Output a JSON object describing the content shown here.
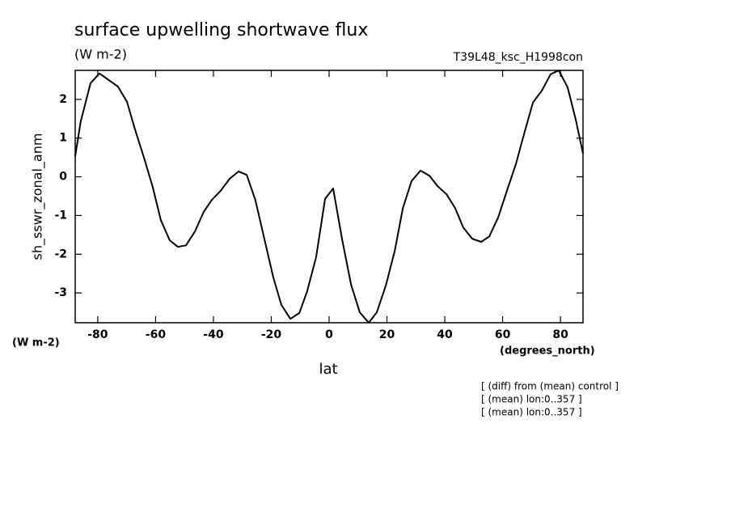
{
  "chart_data": {
    "type": "line",
    "title": "surface upwelling shortwave flux",
    "units": "(W m-2)",
    "run_name": "T39L48_ksc_H1998con",
    "y_label": "sh_sswr_zonal_anm",
    "y_units": "(W m-2)",
    "x_units": "(degrees_north)",
    "x_label": "lat",
    "notes": [
      "[ (diff) from (mean) control ]",
      "[ (mean) lon:0..357 ]",
      "[ (mean) lon:0..357 ]"
    ],
    "x": [
      -87.8,
      -85.9,
      -82.5,
      -79.4,
      -73,
      -69.9,
      -67.1,
      -64,
      -61,
      -58.2,
      -55.1,
      -52.3,
      -49.5,
      -46.4,
      -43.4,
      -40.6,
      -37.5,
      -34.4,
      -31.3,
      -28.5,
      -25.5,
      -22.4,
      -19.3,
      -16.5,
      -13.4,
      -10.3,
      -7.6,
      -4.5,
      -1.4,
      1.4,
      4.5,
      7.6,
      10.6,
      13.7,
      16.5,
      19.6,
      22.7,
      25.5,
      28.5,
      31.6,
      34.7,
      37.5,
      40.6,
      43.6,
      46.4,
      49.5,
      52.6,
      55.4,
      58.5,
      61.5,
      64.6,
      67.4,
      70.5,
      73.6,
      76.6,
      79.4,
      82.5,
      85.3,
      87.8
    ],
    "series": [
      {
        "color": "#000000",
        "values": [
          0.53,
          1.43,
          2.42,
          2.67,
          2.33,
          1.94,
          1.22,
          0.49,
          -0.26,
          -1.12,
          -1.64,
          -1.81,
          -1.77,
          -1.41,
          -0.91,
          -0.6,
          -0.36,
          -0.05,
          0.14,
          0.05,
          -0.6,
          -1.6,
          -2.6,
          -3.31,
          -3.67,
          -3.52,
          -2.96,
          -2.08,
          -0.57,
          -0.3,
          -1.62,
          -2.79,
          -3.5,
          -3.77,
          -3.5,
          -2.81,
          -1.91,
          -0.81,
          -0.11,
          0.16,
          0.03,
          -0.24,
          -0.45,
          -0.81,
          -1.31,
          -1.6,
          -1.68,
          -1.54,
          -1.04,
          -0.36,
          0.33,
          1.1,
          1.92,
          2.23,
          2.65,
          2.75,
          2.31,
          1.47,
          0.6
        ]
      }
    ],
    "xlim": [
      -87.8,
      87.8
    ],
    "xticks": [
      -80,
      -60,
      -40,
      -20,
      0,
      20,
      40,
      60,
      80
    ],
    "ylim": [
      -3.77,
      2.75
    ],
    "yticks": [
      -3,
      -2,
      -1,
      0,
      1,
      2
    ]
  }
}
